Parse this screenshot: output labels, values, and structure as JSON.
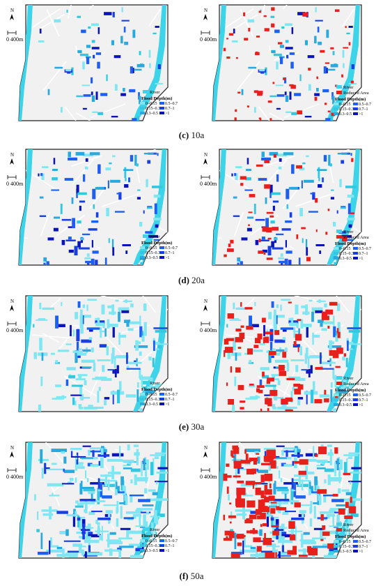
{
  "panels": [
    {
      "caption_letter": "(c)",
      "caption_text": " 10a"
    },
    {
      "caption_letter": "(d)",
      "caption_text": " 20a"
    },
    {
      "caption_letter": "(e)",
      "caption_text": " 30a"
    },
    {
      "caption_letter": "(f)",
      "caption_text": " 50a"
    }
  ],
  "north_label": "N",
  "scale_label": "0  400m",
  "legend": {
    "river": "River",
    "reduced_area": "Reduced Area",
    "title": "Flood Depth(m)",
    "classes": [
      "0–0.15",
      "0.5–0.7",
      "0.15–0.3",
      "0.7–1",
      "0.3–0.5",
      ">1"
    ]
  },
  "colors": {
    "river": "#3dd3e8",
    "reduced": "#e8201c",
    "depth": [
      "#7fe6f2",
      "#1f5ff0",
      "#33c7e0",
      "#1a3fe0",
      "#2aa9dc",
      "#0a14b8"
    ],
    "map_fill": "#f1f1f1",
    "road": "#ffffff"
  }
}
